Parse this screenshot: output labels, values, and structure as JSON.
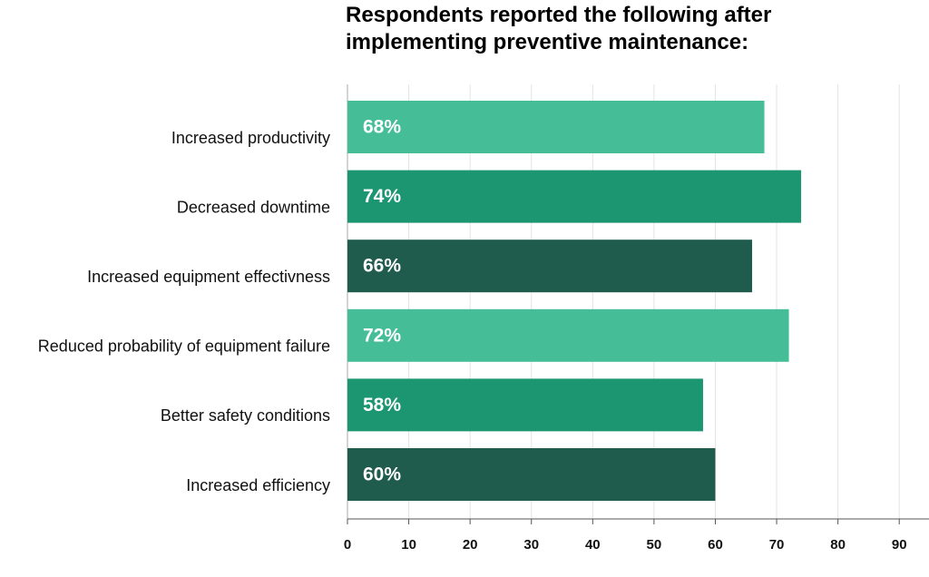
{
  "chart_data": {
    "type": "bar",
    "orientation": "horizontal",
    "title": "Respondents reported the following after implementing preventive maintenance:",
    "categories": [
      "Increased productivity",
      "Decreased downtime",
      "Increased equipment effectivness",
      "Reduced probability of equipment failure",
      "Better safety conditions",
      "Increased efficiency"
    ],
    "values": [
      68,
      74,
      66,
      72,
      58,
      60
    ],
    "value_labels": [
      "68%",
      "74%",
      "66%",
      "72%",
      "58%",
      "60%"
    ],
    "colors": [
      "#45be98",
      "#1b9670",
      "#1f5c4d",
      "#45be98",
      "#1b9670",
      "#1f5c4d"
    ],
    "xlim": [
      0,
      95
    ],
    "xticks": [
      0,
      10,
      20,
      30,
      40,
      50,
      60,
      70,
      80,
      90
    ],
    "grid": true
  }
}
